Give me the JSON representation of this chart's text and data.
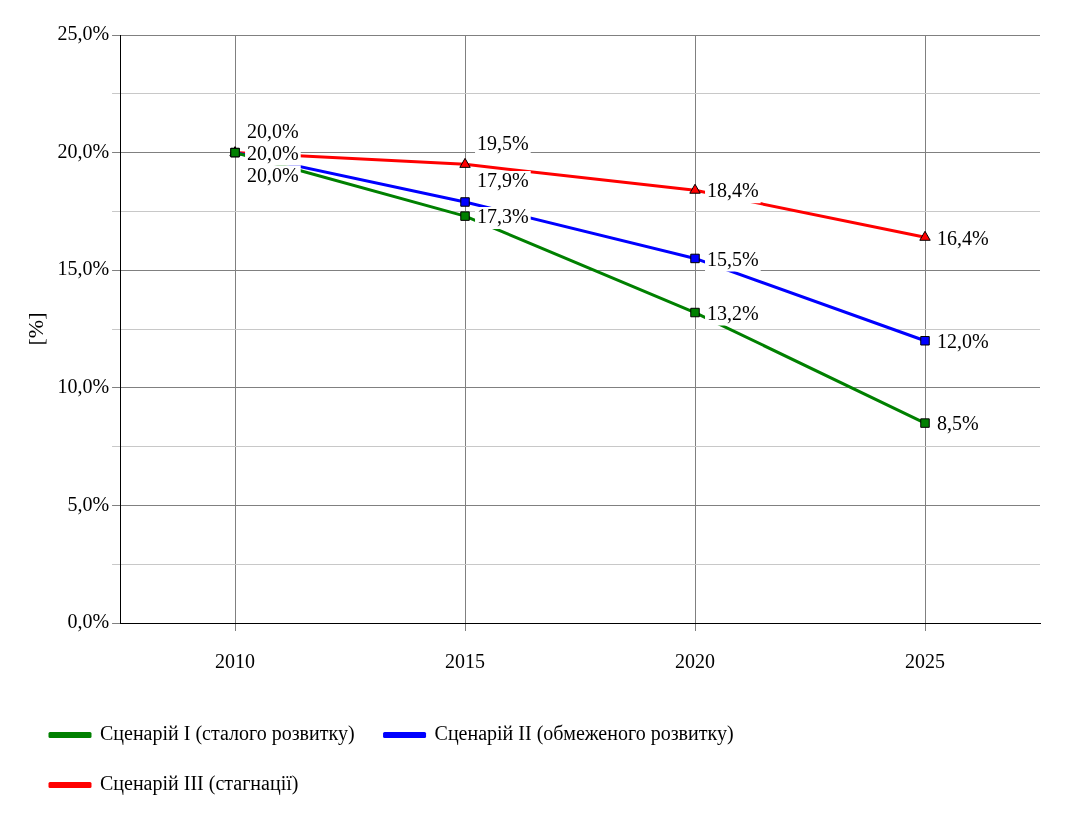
{
  "chart_data": {
    "type": "line",
    "ylabel": "[%]",
    "categories": [
      "2010",
      "2015",
      "2020",
      "2025"
    ],
    "ylim": [
      0,
      25
    ],
    "yticks": [
      {
        "value": 0,
        "label": "0,0%"
      },
      {
        "value": 2.5,
        "label": null
      },
      {
        "value": 5,
        "label": "5,0%"
      },
      {
        "value": 7.5,
        "label": null
      },
      {
        "value": 10,
        "label": "10,0%"
      },
      {
        "value": 12.5,
        "label": null
      },
      {
        "value": 15,
        "label": "15,0%"
      },
      {
        "value": 17.5,
        "label": null
      },
      {
        "value": 20,
        "label": "20,0%"
      },
      {
        "value": 22.5,
        "label": null
      },
      {
        "value": 25,
        "label": "25,0%"
      }
    ],
    "grid": true,
    "legend": "bottom",
    "line_style": "solid",
    "series": [
      {
        "name": "Сценарій I (сталого розвитку)",
        "color": "#008000",
        "marker": "square",
        "values": [
          20.0,
          17.3,
          13.2,
          8.5
        ],
        "value_labels": [
          "20,0%",
          "17,3%",
          "13,2%",
          "8,5%"
        ]
      },
      {
        "name": "Сценарій II (обмеженого розвитку)",
        "color": "#0000ff",
        "marker": "square",
        "values": [
          20.0,
          17.9,
          15.5,
          12.0
        ],
        "value_labels": [
          "20,0%",
          "17,9%",
          "15,5%",
          "12,0%"
        ]
      },
      {
        "name": "Сценарій III (стагнації)",
        "color": "#ff0000",
        "marker": "triangle",
        "values": [
          20.0,
          19.5,
          18.4,
          16.4
        ],
        "value_labels": [
          "20,0%",
          "19,5%",
          "18,4%",
          "16,4%"
        ]
      }
    ]
  }
}
